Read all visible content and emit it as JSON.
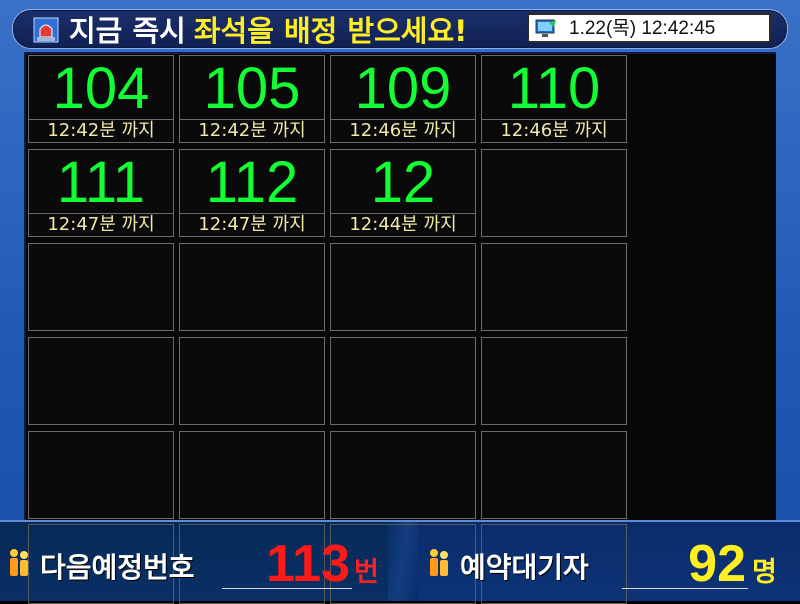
{
  "header": {
    "title_white": "지금 즉시",
    "title_yellow": "좌석을 배정 받으세요!",
    "clock": "1.22(목) 12:42:45",
    "icons": [
      "siren-icon",
      "monitor-icon"
    ]
  },
  "seats": [
    {
      "number": "104",
      "time": "12:42분 까지"
    },
    {
      "number": "105",
      "time": "12:42분 까지"
    },
    {
      "number": "109",
      "time": "12:46분 까지"
    },
    {
      "number": "110",
      "time": "12:46분 까지"
    },
    {
      "number": "111",
      "time": "12:47분 까지"
    },
    {
      "number": "112",
      "time": "12:47분 까지"
    },
    {
      "number": "12",
      "time": "12:44분 까지"
    }
  ],
  "grid": {
    "columns": 4,
    "rows": 5
  },
  "footer": {
    "next_label": "다음예정번호",
    "next_value": "113",
    "next_unit": "번",
    "waiting_label": "예약대기자",
    "waiting_value": "92",
    "waiting_unit": "명",
    "icons": [
      "people-icon"
    ]
  },
  "colors": {
    "seat_number": "#11ff33",
    "seat_time": "#f0e9a8",
    "title_accent": "#ffee22",
    "next_value": "#ff1a1a",
    "waiting_value": "#ffee22"
  }
}
